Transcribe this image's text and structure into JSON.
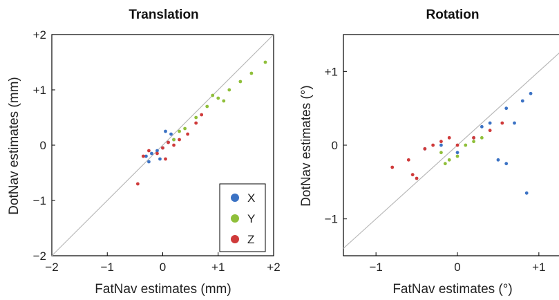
{
  "chart_data": [
    {
      "type": "scatter",
      "title": "Translation",
      "xlabel": "FatNav estimates (mm)",
      "ylabel": "DotNav estimates (mm)",
      "xlim": [
        -2,
        2
      ],
      "ylim": [
        -2,
        2
      ],
      "xticks": [
        "−2",
        "−1",
        "0",
        "+1",
        "+2"
      ],
      "xtick_values": [
        -2,
        -1,
        0,
        1,
        2
      ],
      "yticks": [
        "−2",
        "−1",
        "0",
        "+1",
        "+2"
      ],
      "ytick_values": [
        -2,
        -1,
        0,
        1,
        2
      ],
      "grid": false,
      "identity_line": true,
      "legend": {
        "placement": "bottom-right",
        "entries": [
          "X",
          "Y",
          "Z"
        ]
      },
      "series": [
        {
          "name": "X",
          "color": "#3b72c4",
          "points": [
            [
              -0.3,
              -0.2
            ],
            [
              -0.2,
              -0.15
            ],
            [
              -0.1,
              -0.1
            ],
            [
              0,
              -0.05
            ],
            [
              0.1,
              0.05
            ],
            [
              0.2,
              0.1
            ],
            [
              0.15,
              0.2
            ],
            [
              -0.25,
              -0.3
            ],
            [
              0.05,
              0.25
            ],
            [
              -0.05,
              -0.25
            ]
          ]
        },
        {
          "name": "Y",
          "color": "#8fbf3a",
          "points": [
            [
              0.2,
              0.1
            ],
            [
              0.4,
              0.3
            ],
            [
              0.6,
              0.5
            ],
            [
              0.8,
              0.7
            ],
            [
              1.0,
              0.85
            ],
            [
              1.2,
              1.0
            ],
            [
              1.4,
              1.15
            ],
            [
              1.6,
              1.3
            ],
            [
              1.85,
              1.5
            ],
            [
              0.3,
              0.25
            ],
            [
              0.9,
              0.9
            ],
            [
              1.1,
              0.8
            ]
          ]
        },
        {
          "name": "Z",
          "color": "#cf3a3a",
          "points": [
            [
              -0.35,
              -0.2
            ],
            [
              -0.25,
              -0.1
            ],
            [
              -0.1,
              -0.15
            ],
            [
              0,
              -0.05
            ],
            [
              0.1,
              0.05
            ],
            [
              0.2,
              0.0
            ],
            [
              0.3,
              0.1
            ],
            [
              0.45,
              0.2
            ],
            [
              0.6,
              0.4
            ],
            [
              0.7,
              0.55
            ],
            [
              -0.45,
              -0.7
            ],
            [
              0.05,
              -0.25
            ]
          ]
        }
      ]
    },
    {
      "type": "scatter",
      "title": "Rotation",
      "xlabel": "FatNav estimates (°)",
      "ylabel": "DotNav estimates (°)",
      "xlim": [
        -1.4,
        1.4
      ],
      "ylim": [
        -1.5,
        1.5
      ],
      "xticks": [
        "−1",
        "0",
        "+1"
      ],
      "xtick_values": [
        -1,
        0,
        1
      ],
      "yticks": [
        "−1",
        "0",
        "+1"
      ],
      "ytick_values": [
        -1,
        0,
        1
      ],
      "grid": false,
      "identity_line": true,
      "series": [
        {
          "name": "X",
          "color": "#3b72c4",
          "points": [
            [
              -0.2,
              0.0
            ],
            [
              0.0,
              -0.1
            ],
            [
              0.2,
              0.1
            ],
            [
              0.4,
              0.3
            ],
            [
              0.6,
              0.5
            ],
            [
              0.8,
              0.6
            ],
            [
              0.9,
              0.7
            ],
            [
              0.5,
              -0.2
            ],
            [
              0.6,
              -0.25
            ],
            [
              0.3,
              0.25
            ],
            [
              -0.4,
              -0.05
            ],
            [
              0.85,
              -0.65
            ],
            [
              0.7,
              0.3
            ]
          ]
        },
        {
          "name": "Y",
          "color": "#8fbf3a",
          "points": [
            [
              -0.2,
              -0.1
            ],
            [
              -0.1,
              -0.2
            ],
            [
              0.0,
              -0.15
            ],
            [
              0.1,
              0.0
            ],
            [
              0.2,
              0.05
            ],
            [
              0.3,
              0.1
            ],
            [
              -0.15,
              -0.25
            ]
          ]
        },
        {
          "name": "Z",
          "color": "#cf3a3a",
          "points": [
            [
              -0.8,
              -0.3
            ],
            [
              -0.6,
              -0.2
            ],
            [
              -0.4,
              -0.05
            ],
            [
              -0.2,
              0.05
            ],
            [
              0.0,
              0.0
            ],
            [
              0.2,
              0.1
            ],
            [
              0.4,
              0.2
            ],
            [
              0.55,
              0.3
            ],
            [
              -0.5,
              -0.45
            ],
            [
              -0.55,
              -0.4
            ],
            [
              -0.3,
              0.0
            ],
            [
              -0.1,
              0.1
            ]
          ]
        }
      ]
    }
  ]
}
